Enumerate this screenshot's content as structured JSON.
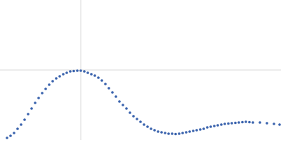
{
  "chart_data": {
    "type": "scatter",
    "x": [
      10,
      15,
      20,
      25,
      30,
      35,
      40,
      45,
      50,
      55,
      60,
      65,
      70,
      75,
      80,
      85,
      90,
      95,
      100,
      105,
      110,
      115,
      120,
      125,
      130,
      135,
      140,
      145,
      150,
      155,
      160,
      165,
      170,
      175,
      180,
      185,
      190,
      195,
      200,
      205,
      210,
      215,
      220,
      225,
      230,
      235,
      240,
      245,
      250,
      255,
      260,
      265,
      270,
      275,
      280,
      285,
      290,
      295,
      300,
      305,
      310,
      315,
      320,
      325,
      330,
      335,
      340,
      345,
      350,
      355,
      360,
      370,
      380,
      390,
      398
    ],
    "series": [
      {
        "color": "#3a63ad",
        "values": [
          3,
          6,
          10,
          16,
          22,
          29,
          37,
          45,
          53,
          60,
          67,
          73,
          79,
          84,
          88,
          91,
          94,
          96,
          98,
          98.5,
          99,
          99,
          98,
          96,
          94,
          92,
          89,
          85,
          80,
          74,
          68,
          62,
          55,
          50,
          45,
          39,
          34,
          30,
          26,
          22,
          19,
          16,
          14,
          12,
          11,
          10,
          9,
          9,
          8.5,
          9,
          10,
          11,
          12,
          13,
          14,
          15,
          16,
          18,
          19,
          20,
          21,
          22,
          23,
          23.5,
          24,
          24.5,
          25,
          25.5,
          26,
          25.5,
          25,
          25,
          24,
          23,
          22
        ]
      }
    ],
    "xlim": [
      0,
      400
    ],
    "ylim": [
      0,
      200
    ],
    "xticks": [
      115
    ],
    "yticks": [
      100
    ],
    "grid": true,
    "tick_labels": false
  }
}
